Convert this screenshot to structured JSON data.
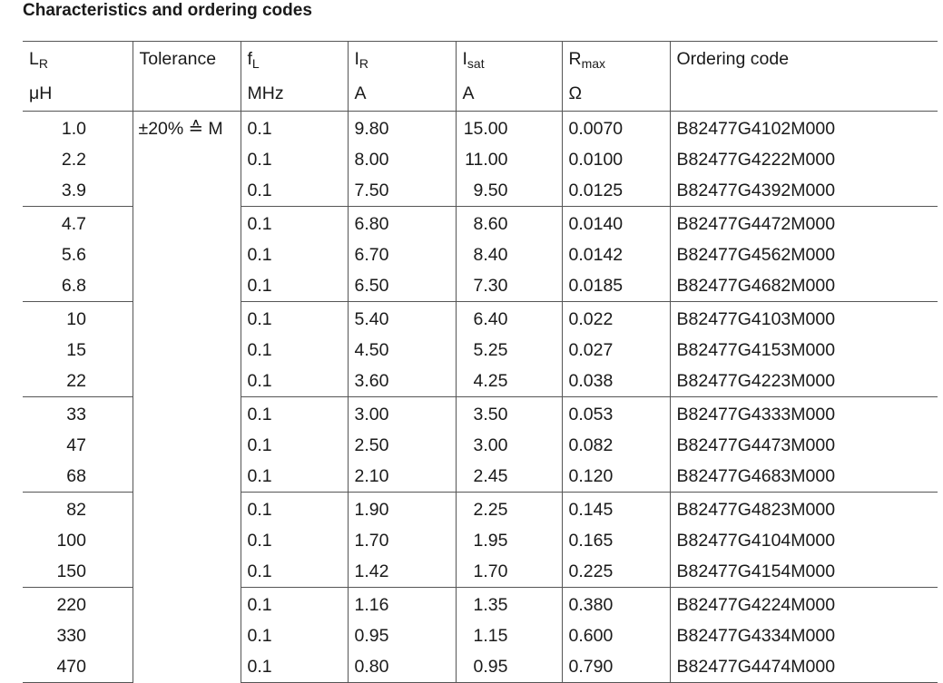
{
  "title": "Characteristics and ordering codes",
  "columns": {
    "lr": {
      "symbol": "L",
      "sub": "R",
      "unit": "μH"
    },
    "tol": {
      "symbol": "Tolerance",
      "sub": "",
      "unit": ""
    },
    "fl": {
      "symbol": "f",
      "sub": "L",
      "unit": "MHz"
    },
    "ir": {
      "symbol": "I",
      "sub": "R",
      "unit": "A"
    },
    "isat": {
      "symbol": "I",
      "sub": "sat",
      "unit": "A"
    },
    "rmax": {
      "symbol": "R",
      "sub": "max",
      "unit": "Ω"
    },
    "code": {
      "symbol": "Ordering code",
      "sub": "",
      "unit": ""
    }
  },
  "tolerance": "±20% ≙ M",
  "rows": [
    {
      "lr": "1.0",
      "fl": "0.1",
      "ir": "9.80",
      "isat": "15.00",
      "rmax": "0.0070",
      "code": "B82477G4102M000"
    },
    {
      "lr": "2.2",
      "fl": "0.1",
      "ir": "8.00",
      "isat": "11.00",
      "rmax": "0.0100",
      "code": "B82477G4222M000"
    },
    {
      "lr": "3.9",
      "fl": "0.1",
      "ir": "7.50",
      "isat": "9.50",
      "rmax": "0.0125",
      "code": "B82477G4392M000"
    },
    {
      "lr": "4.7",
      "fl": "0.1",
      "ir": "6.80",
      "isat": "8.60",
      "rmax": "0.0140",
      "code": "B82477G4472M000"
    },
    {
      "lr": "5.6",
      "fl": "0.1",
      "ir": "6.70",
      "isat": "8.40",
      "rmax": "0.0142",
      "code": "B82477G4562M000"
    },
    {
      "lr": "6.8",
      "fl": "0.1",
      "ir": "6.50",
      "isat": "7.30",
      "rmax": "0.0185",
      "code": "B82477G4682M000"
    },
    {
      "lr": "10",
      "fl": "0.1",
      "ir": "5.40",
      "isat": "6.40",
      "rmax": "0.022",
      "code": "B82477G4103M000"
    },
    {
      "lr": "15",
      "fl": "0.1",
      "ir": "4.50",
      "isat": "5.25",
      "rmax": "0.027",
      "code": "B82477G4153M000"
    },
    {
      "lr": "22",
      "fl": "0.1",
      "ir": "3.60",
      "isat": "4.25",
      "rmax": "0.038",
      "code": "B82477G4223M000"
    },
    {
      "lr": "33",
      "fl": "0.1",
      "ir": "3.00",
      "isat": "3.50",
      "rmax": "0.053",
      "code": "B82477G4333M000"
    },
    {
      "lr": "47",
      "fl": "0.1",
      "ir": "2.50",
      "isat": "3.00",
      "rmax": "0.082",
      "code": "B82477G4473M000"
    },
    {
      "lr": "68",
      "fl": "0.1",
      "ir": "2.10",
      "isat": "2.45",
      "rmax": "0.120",
      "code": "B82477G4683M000"
    },
    {
      "lr": "82",
      "fl": "0.1",
      "ir": "1.90",
      "isat": "2.25",
      "rmax": "0.145",
      "code": "B82477G4823M000"
    },
    {
      "lr": "100",
      "fl": "0.1",
      "ir": "1.70",
      "isat": "1.95",
      "rmax": "0.165",
      "code": "B82477G4104M000"
    },
    {
      "lr": "150",
      "fl": "0.1",
      "ir": "1.42",
      "isat": "1.70",
      "rmax": "0.225",
      "code": "B82477G4154M000"
    },
    {
      "lr": "220",
      "fl": "0.1",
      "ir": "1.16",
      "isat": "1.35",
      "rmax": "0.380",
      "code": "B82477G4224M000"
    },
    {
      "lr": "330",
      "fl": "0.1",
      "ir": "0.95",
      "isat": "1.15",
      "rmax": "0.600",
      "code": "B82477G4334M000"
    },
    {
      "lr": "470",
      "fl": "0.1",
      "ir": "0.80",
      "isat": "0.95",
      "rmax": "0.790",
      "code": "B82477G4474M000"
    }
  ]
}
